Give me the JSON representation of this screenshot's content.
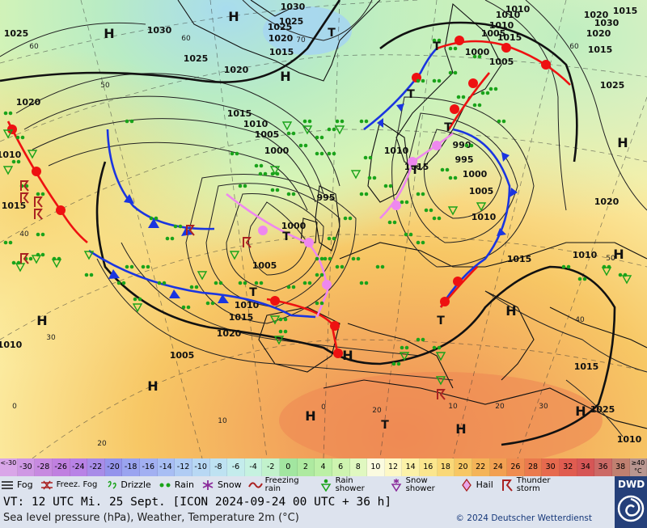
{
  "map": {
    "isobars": [
      {
        "label": "1030"
      },
      {
        "label": "1025"
      },
      {
        "label": "1030"
      },
      {
        "label": "1025"
      },
      {
        "label": "1020"
      },
      {
        "label": "1015"
      },
      {
        "label": "1020"
      },
      {
        "label": "1015"
      },
      {
        "label": "1010"
      },
      {
        "label": "1005"
      },
      {
        "label": "1000"
      },
      {
        "label": "995"
      },
      {
        "label": "1000"
      },
      {
        "label": "1005"
      },
      {
        "label": "1010"
      },
      {
        "label": "1015"
      },
      {
        "label": "1020"
      },
      {
        "label": "1005"
      },
      {
        "label": "1010"
      },
      {
        "label": "1015"
      },
      {
        "label": "1020"
      },
      {
        "label": "1025"
      },
      {
        "label": "1010"
      },
      {
        "label": "1015"
      },
      {
        "label": "1005"
      },
      {
        "label": "1010"
      },
      {
        "label": "1015"
      },
      {
        "label": "1020"
      },
      {
        "label": "1025"
      },
      {
        "label": "1020"
      },
      {
        "label": "1015"
      },
      {
        "label": "1010"
      },
      {
        "label": "990"
      },
      {
        "label": "995"
      },
      {
        "label": "1000"
      },
      {
        "label": "1005"
      },
      {
        "label": "1010"
      },
      {
        "label": "1015"
      },
      {
        "label": "1010"
      },
      {
        "label": "1015"
      },
      {
        "label": "1010"
      },
      {
        "label": "1000"
      },
      {
        "label": "1005"
      },
      {
        "label": "1010"
      },
      {
        "label": "1015"
      },
      {
        "label": "1020"
      },
      {
        "label": "1025"
      },
      {
        "label": "1010"
      },
      {
        "label": "1030"
      },
      {
        "label": "1025"
      }
    ],
    "pressure_centers": [
      {
        "label": "H"
      },
      {
        "label": "H"
      },
      {
        "label": "H"
      },
      {
        "label": "H"
      },
      {
        "label": "H"
      },
      {
        "label": "H"
      },
      {
        "label": "H"
      },
      {
        "label": "H"
      },
      {
        "label": "H"
      },
      {
        "label": "H"
      },
      {
        "label": "H"
      },
      {
        "label": "H"
      },
      {
        "label": "T"
      },
      {
        "label": "T"
      },
      {
        "label": "T"
      },
      {
        "label": "T"
      },
      {
        "label": "T"
      },
      {
        "label": "T"
      },
      {
        "label": "T"
      },
      {
        "label": "T"
      },
      {
        "label": "T"
      }
    ],
    "graticule_labels": [
      {
        "label": "60"
      },
      {
        "label": "50"
      },
      {
        "label": "40"
      },
      {
        "label": "30"
      },
      {
        "label": "20"
      },
      {
        "label": "60"
      },
      {
        "label": "70"
      },
      {
        "label": "60"
      },
      {
        "label": "50"
      },
      {
        "label": "40"
      },
      {
        "label": "30"
      },
      {
        "label": "20"
      },
      {
        "label": "10"
      },
      {
        "label": "0"
      },
      {
        "label": "20"
      },
      {
        "label": "10"
      },
      {
        "label": "0"
      }
    ],
    "colors": {
      "cold_front": "#1a35e0",
      "warm_front": "#ee1111",
      "occlusion": "#ee88ee",
      "rain": "#1aa31a",
      "thunder": "#aa2222"
    }
  },
  "colorbar": {
    "cells": [
      {
        "label": "<-30",
        "color": "#d9a6e8"
      },
      {
        "label": "-30",
        "color": "#cf98e4"
      },
      {
        "label": "-28",
        "color": "#c78ae0"
      },
      {
        "label": "-26",
        "color": "#c080e0"
      },
      {
        "label": "-24",
        "color": "#b882e6"
      },
      {
        "label": "-22",
        "color": "#a88ce8"
      },
      {
        "label": "-20",
        "color": "#9494ec"
      },
      {
        "label": "-18",
        "color": "#9aa4f0"
      },
      {
        "label": "-16",
        "color": "#a2b0f2"
      },
      {
        "label": "-14",
        "color": "#a8bef4"
      },
      {
        "label": "-12",
        "color": "#b0ccf4"
      },
      {
        "label": "-10",
        "color": "#b8d8f4"
      },
      {
        "label": "-8",
        "color": "#bee2f2"
      },
      {
        "label": "-6",
        "color": "#c4ecec"
      },
      {
        "label": "-4",
        "color": "#c6f2e0"
      },
      {
        "label": "-2",
        "color": "#c2f2cc"
      },
      {
        "label": "0",
        "color": "#a2e6a0"
      },
      {
        "label": "2",
        "color": "#aeeaa0"
      },
      {
        "label": "4",
        "color": "#bcf0a6"
      },
      {
        "label": "6",
        "color": "#cef4b0"
      },
      {
        "label": "8",
        "color": "#e0f8c0"
      },
      {
        "label": "10",
        "color": "#fbfbe0"
      },
      {
        "label": "12",
        "color": "#fdf8c6"
      },
      {
        "label": "14",
        "color": "#fcf2a8"
      },
      {
        "label": "16",
        "color": "#fbe68e"
      },
      {
        "label": "18",
        "color": "#f9d878"
      },
      {
        "label": "20",
        "color": "#f7c764"
      },
      {
        "label": "22",
        "color": "#f4b458"
      },
      {
        "label": "24",
        "color": "#f2a052"
      },
      {
        "label": "26",
        "color": "#ef8c50"
      },
      {
        "label": "28",
        "color": "#ea7a4e"
      },
      {
        "label": "30",
        "color": "#e66a4e"
      },
      {
        "label": "32",
        "color": "#e05c50"
      },
      {
        "label": "34",
        "color": "#d65656"
      },
      {
        "label": "36",
        "color": "#cc6a66"
      },
      {
        "label": "38",
        "color": "#c08070"
      },
      {
        "label": "≥40 °C",
        "color": "#b89690"
      }
    ]
  },
  "legend": {
    "items": [
      {
        "label": "Fog",
        "icon": "fog-icon"
      },
      {
        "label": "Freez. Fog",
        "icon": "freezing-fog-icon"
      },
      {
        "label": "Drizzle",
        "icon": "drizzle-icon"
      },
      {
        "label": "Rain",
        "icon": "rain-icon"
      },
      {
        "label": "Snow",
        "icon": "snow-icon"
      },
      {
        "label": "Freezing rain",
        "icon": "freezing-rain-icon"
      },
      {
        "label": "Rain shower",
        "icon": "rain-shower-icon"
      },
      {
        "label": "Snow shower",
        "icon": "snow-shower-icon"
      },
      {
        "label": "Hail",
        "icon": "hail-icon"
      },
      {
        "label": "Thunder storm",
        "icon": "thunderstorm-icon"
      }
    ]
  },
  "info": {
    "valid_time": "VT: 12 UTC Mi.  25 Sept. [ICON 2024-09-24  00 UTC + 36 h]",
    "subtitle": "Sea level pressure (hPa), Weather, Temperature 2m (°C)",
    "copyright": "© 2024 Deutscher Wetterdienst"
  },
  "logo": {
    "text": "DWD"
  }
}
